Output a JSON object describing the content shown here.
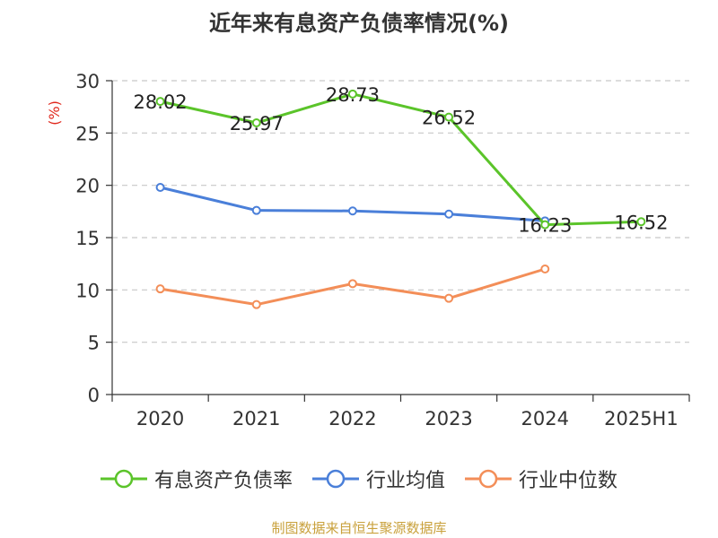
{
  "chart_data": {
    "type": "line",
    "title": "近年来有息资产负债率情况(%)",
    "ylabel": "(%)",
    "xlabel": "",
    "ylim": [
      0,
      30
    ],
    "yticks": [
      0,
      5,
      10,
      15,
      20,
      25,
      30
    ],
    "grid": "horizontal dashed",
    "legend_placement": "bottom-center",
    "categories": [
      "2020",
      "2021",
      "2022",
      "2023",
      "2024",
      "2025H1"
    ],
    "series": [
      {
        "name": "有息资产负债率",
        "color": "#5bc42a",
        "values": [
          28.02,
          25.97,
          28.73,
          26.52,
          16.23,
          16.52
        ],
        "labels": [
          "28.02",
          "25.97",
          "28.73",
          "26.52",
          "16.23",
          "16.52"
        ]
      },
      {
        "name": "行业均值",
        "color": "#4a7fd9",
        "values": [
          19.8,
          17.6,
          17.55,
          17.25,
          16.6,
          null
        ]
      },
      {
        "name": "行业中位数",
        "color": "#f38e58",
        "values": [
          10.1,
          8.6,
          10.6,
          9.2,
          12.0,
          null
        ]
      }
    ]
  },
  "source_text": "制图数据来自恒生聚源数据库"
}
